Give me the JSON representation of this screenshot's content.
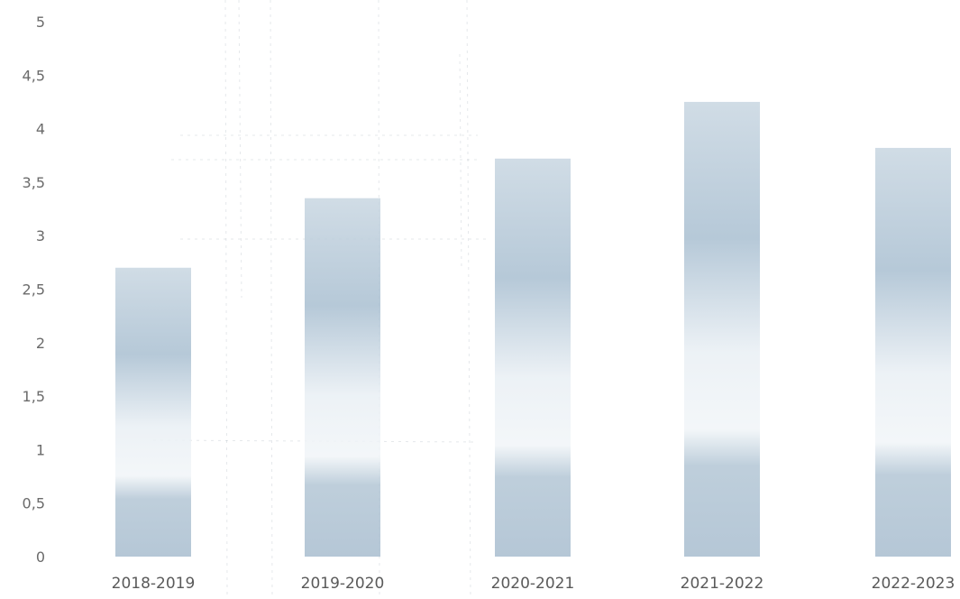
{
  "colors": {
    "bar": "#9fb6c9",
    "bar_light": "#dfe8ef",
    "tick_text": "#6b6b6b",
    "noise": "#8a97a6"
  },
  "chart_data": {
    "type": "bar",
    "categories": [
      "2018-2019",
      "2019-2020",
      "2020-2021",
      "2021-2022",
      "2022-2023"
    ],
    "values": [
      2.7,
      3.35,
      3.72,
      4.25,
      3.82
    ],
    "y_ticks": [
      "0",
      "0,5",
      "1",
      "1,5",
      "2",
      "2,5",
      "3",
      "3,5",
      "4",
      "4,5",
      "5"
    ],
    "ylim": [
      0,
      5
    ],
    "title": "",
    "xlabel": "",
    "ylabel": "",
    "grid": false,
    "legend": "none"
  }
}
